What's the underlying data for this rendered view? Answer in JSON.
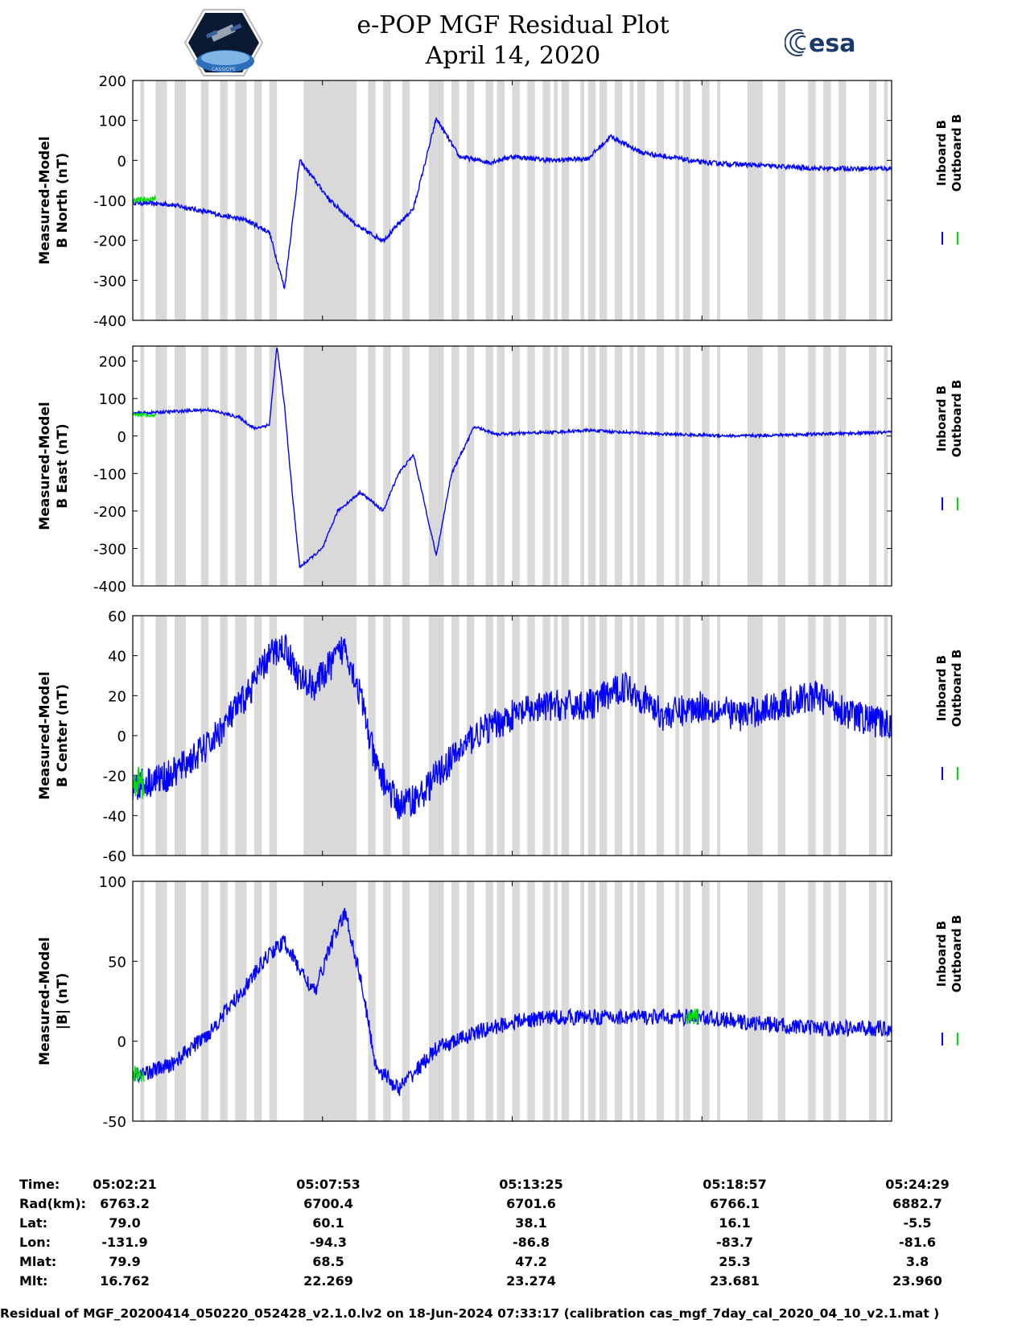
{
  "header": {
    "title_line1": "e-POP MGF Residual Plot",
    "title_line2": "April 14, 2020",
    "logo_left_text": "CASSIOPE",
    "logo_right_text": "esa"
  },
  "colors": {
    "inboard": "#0000ff",
    "outboard": "#00e000",
    "gaps": "#d9d9d9"
  },
  "chart_data": [
    {
      "type": "line",
      "id": "north",
      "ylabel_line1": "Measured-Model",
      "ylabel_line2": "B North (nT)",
      "ylim": [
        -400,
        200
      ],
      "yticks": [
        "200",
        "100",
        "0",
        "-100",
        "-200",
        "-300",
        "-400"
      ],
      "ytick_values": [
        200,
        100,
        0,
        -100,
        -200,
        -300,
        -400
      ],
      "legend": [
        "Inboard B",
        "Outboard B"
      ],
      "noise": 6,
      "series": [
        {
          "name": "Inboard B",
          "x": [
            0,
            0.05,
            0.1,
            0.15,
            0.18,
            0.2,
            0.22,
            0.26,
            0.3,
            0.33,
            0.37,
            0.4,
            0.43,
            0.47,
            0.5,
            0.55,
            0.6,
            0.63,
            0.67,
            0.75,
            0.8,
            0.85,
            0.9,
            1.0
          ],
          "y": [
            -105,
            -110,
            -130,
            -150,
            -180,
            -320,
            0,
            -100,
            -170,
            -200,
            -120,
            105,
            10,
            -5,
            10,
            0,
            5,
            60,
            20,
            -5,
            -10,
            -15,
            -20,
            -20
          ]
        },
        {
          "name": "Outboard B",
          "x": [
            0,
            0.03
          ],
          "y": [
            -100,
            -95
          ]
        }
      ]
    },
    {
      "type": "line",
      "id": "east",
      "ylabel_line1": "Measured-Model",
      "ylabel_line2": "B East (nT)",
      "ylim": [
        -400,
        240
      ],
      "yticks": [
        "200",
        "100",
        "0",
        "-100",
        "-200",
        "-300",
        "-400"
      ],
      "ytick_values": [
        200,
        100,
        0,
        -100,
        -200,
        -300,
        -400
      ],
      "legend": [
        "Inboard B",
        "Outboard B"
      ],
      "noise": 4,
      "series": [
        {
          "name": "Inboard B",
          "x": [
            0,
            0.05,
            0.1,
            0.14,
            0.16,
            0.18,
            0.19,
            0.2,
            0.21,
            0.22,
            0.25,
            0.27,
            0.3,
            0.33,
            0.35,
            0.37,
            0.4,
            0.42,
            0.45,
            0.48,
            0.55,
            0.6,
            0.7,
            0.8,
            0.9,
            1.0
          ],
          "y": [
            60,
            65,
            70,
            50,
            20,
            30,
            240,
            80,
            -150,
            -350,
            -300,
            -200,
            -150,
            -200,
            -100,
            -50,
            -320,
            -100,
            25,
            5,
            10,
            15,
            5,
            0,
            5,
            10
          ]
        },
        {
          "name": "Outboard B",
          "x": [
            0,
            0.03
          ],
          "y": [
            58,
            55
          ]
        }
      ]
    },
    {
      "type": "line",
      "id": "center",
      "ylabel_line1": "Measured-Model",
      "ylabel_line2": "B Center (nT)",
      "ylim": [
        -60,
        60
      ],
      "yticks": [
        "60",
        "40",
        "20",
        "0",
        "-20",
        "-40",
        "-60"
      ],
      "ytick_values": [
        60,
        40,
        20,
        0,
        -20,
        -40,
        -60
      ],
      "legend": [
        "Inboard B",
        "Outboard B"
      ],
      "noise": 8,
      "series": [
        {
          "name": "Inboard B",
          "x": [
            0,
            0.05,
            0.1,
            0.15,
            0.18,
            0.2,
            0.22,
            0.24,
            0.26,
            0.28,
            0.3,
            0.32,
            0.35,
            0.38,
            0.4,
            0.45,
            0.5,
            0.55,
            0.6,
            0.65,
            0.7,
            0.75,
            0.8,
            0.85,
            0.9,
            0.95,
            1.0
          ],
          "y": [
            -25,
            -20,
            -5,
            20,
            40,
            45,
            28,
            25,
            35,
            45,
            20,
            -15,
            -35,
            -30,
            -20,
            0,
            10,
            15,
            15,
            25,
            10,
            15,
            10,
            15,
            20,
            10,
            5
          ]
        },
        {
          "name": "Outboard B",
          "x": [
            0,
            0.015
          ],
          "y": [
            -22,
            -24
          ]
        }
      ]
    },
    {
      "type": "line",
      "id": "total",
      "ylabel_line1": "Measured-Model",
      "ylabel_line2": "|B| (nT)",
      "ylim": [
        -50,
        100
      ],
      "yticks": [
        "100",
        "50",
        "0",
        "-50"
      ],
      "ytick_values": [
        100,
        50,
        0,
        -50
      ],
      "legend": [
        "Inboard B",
        "Outboard B"
      ],
      "noise": 5,
      "series": [
        {
          "name": "Inboard B",
          "x": [
            0,
            0.05,
            0.1,
            0.15,
            0.18,
            0.2,
            0.22,
            0.24,
            0.26,
            0.28,
            0.3,
            0.32,
            0.35,
            0.38,
            0.4,
            0.45,
            0.5,
            0.55,
            0.6,
            0.65,
            0.7,
            0.75,
            0.8,
            0.85,
            0.9,
            0.95,
            1.0
          ],
          "y": [
            -22,
            -15,
            5,
            35,
            55,
            62,
            45,
            30,
            60,
            80,
            40,
            -15,
            -30,
            -15,
            -5,
            5,
            12,
            15,
            15,
            15,
            15,
            15,
            12,
            10,
            8,
            8,
            8
          ]
        },
        {
          "name": "Outboard B",
          "x": [
            0,
            0.015,
            0.73,
            0.745
          ],
          "y": [
            -20,
            -21,
            14,
            16
          ]
        }
      ]
    }
  ],
  "gaps": [
    [
      0.01,
      0.015
    ],
    [
      0.03,
      0.045
    ],
    [
      0.055,
      0.07
    ],
    [
      0.09,
      0.1
    ],
    [
      0.115,
      0.125
    ],
    [
      0.135,
      0.15
    ],
    [
      0.16,
      0.17
    ],
    [
      0.18,
      0.19
    ],
    [
      0.225,
      0.295
    ],
    [
      0.31,
      0.32
    ],
    [
      0.33,
      0.34
    ],
    [
      0.355,
      0.365
    ],
    [
      0.39,
      0.41
    ],
    [
      0.42,
      0.43
    ],
    [
      0.44,
      0.45
    ],
    [
      0.465,
      0.475
    ],
    [
      0.48,
      0.49
    ],
    [
      0.5,
      0.51
    ],
    [
      0.52,
      0.53
    ],
    [
      0.54,
      0.55
    ],
    [
      0.555,
      0.56
    ],
    [
      0.565,
      0.575
    ],
    [
      0.59,
      0.595
    ],
    [
      0.6,
      0.61
    ],
    [
      0.615,
      0.625
    ],
    [
      0.635,
      0.645
    ],
    [
      0.655,
      0.66
    ],
    [
      0.665,
      0.675
    ],
    [
      0.69,
      0.7
    ],
    [
      0.715,
      0.72
    ],
    [
      0.725,
      0.735
    ],
    [
      0.75,
      0.76
    ],
    [
      0.77,
      0.77
    ],
    [
      0.81,
      0.83
    ],
    [
      0.85,
      0.86
    ],
    [
      0.89,
      0.9
    ],
    [
      0.91,
      0.92
    ],
    [
      0.93,
      0.94
    ],
    [
      0.97,
      0.98
    ],
    [
      0.99,
      0.995
    ]
  ],
  "orbit": {
    "headers": [
      "Time:",
      "Rad(km):",
      "Lat:",
      "Lon:",
      "Mlat:",
      "Mlt:"
    ],
    "columns": [
      {
        "time": "05:02:21",
        "rad": "6763.2",
        "lat": "79.0",
        "lon": "-131.9",
        "mlat": "79.9",
        "mlt": "16.762"
      },
      {
        "time": "05:07:53",
        "rad": "6700.4",
        "lat": "60.1",
        "lon": "-94.3",
        "mlat": "68.5",
        "mlt": "22.269"
      },
      {
        "time": "05:13:25",
        "rad": "6701.6",
        "lat": "38.1",
        "lon": "-86.8",
        "mlat": "47.2",
        "mlt": "23.274"
      },
      {
        "time": "05:18:57",
        "rad": "6766.1",
        "lat": "16.1",
        "lon": "-83.7",
        "mlat": "25.3",
        "mlt": "23.681"
      },
      {
        "time": "05:24:29",
        "rad": "6882.7",
        "lat": "-5.5",
        "lon": "-81.6",
        "mlat": "3.8",
        "mlt": "23.960"
      }
    ]
  },
  "footer": "Residual of MGF_20200414_050220_052428_v2.1.0.lv2 on 18-Jun-2024 07:33:17 (calibration cas_mgf_7day_cal_2020_04_10_v2.1.mat )"
}
